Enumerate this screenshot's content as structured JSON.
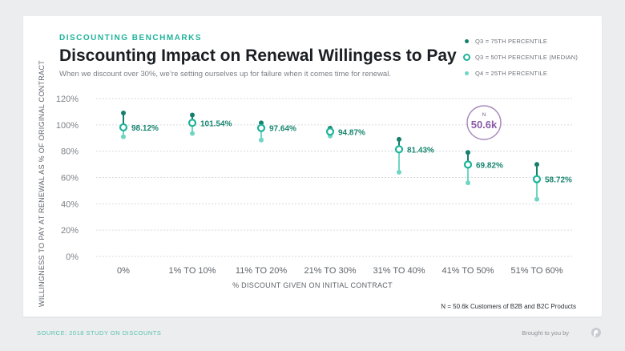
{
  "header": {
    "eyebrow": "DISCOUNTING BENCHMARKS",
    "title": "Discounting Impact on Renewal Willingess to Pay",
    "subtitle": "When we discount over 30%, we’re setting ourselves up for failure when it comes time for renewal."
  },
  "legend": [
    {
      "label": "Q3 = 75TH PERCENTILE",
      "style": "dark"
    },
    {
      "label": "Q3 = 50TH PERCENTILE (MEDIAN)",
      "style": "ring"
    },
    {
      "label": "Q4 = 25TH PERCENTILE",
      "style": "light"
    }
  ],
  "n_badge": {
    "label": "N",
    "value": "50.6k"
  },
  "footnote": "N = 50.6k Customers of B2B and B2C Products",
  "footer": {
    "source": "SOURCE: 2018 STUDY ON DISCOUNTS",
    "brought_by": "Brought to you by"
  },
  "colors": {
    "q75": "#15806b",
    "median": "#1fb39a",
    "q25": "#6fd6c3",
    "label": "#17856f",
    "badge": "#8a5aa8"
  },
  "chart_data": {
    "type": "scatter",
    "title": "Discounting Impact on Renewal Willingess to Pay",
    "xlabel": "% DISCOUNT GIVEN ON INITIAL CONTRACT",
    "ylabel": "WILLINGNESS TO PAY AT RENEWAL AS % OF ORIGINAL CONTRACT",
    "categories": [
      "0%",
      "1% TO 10%",
      "11% TO 20%",
      "21% TO 30%",
      "31% TO 40%",
      "41% TO 50%",
      "51% TO 60%"
    ],
    "ylim": [
      0,
      120
    ],
    "yticks": [
      "0%",
      "20%",
      "40%",
      "60%",
      "80%",
      "100%",
      "120%"
    ],
    "ytick_values": [
      0,
      20,
      40,
      60,
      80,
      100,
      120
    ],
    "grid": true,
    "legend_position": "top-right",
    "series": [
      {
        "name": "Q3 = 75TH PERCENTILE",
        "values": [
          109,
          107.5,
          101.5,
          97.5,
          89,
          79,
          70
        ]
      },
      {
        "name": "Q3 = 50TH PERCENTILE (MEDIAN)",
        "values": [
          98.12,
          101.54,
          97.64,
          94.87,
          81.43,
          69.82,
          58.72
        ]
      },
      {
        "name": "Q4 = 25TH PERCENTILE",
        "values": [
          91,
          93.5,
          88.5,
          91.5,
          64,
          56,
          43.5
        ]
      }
    ],
    "data_labels": [
      "98.12%",
      "101.54%",
      "97.64%",
      "94.87%",
      "81.43%",
      "69.82%",
      "58.72%"
    ]
  }
}
